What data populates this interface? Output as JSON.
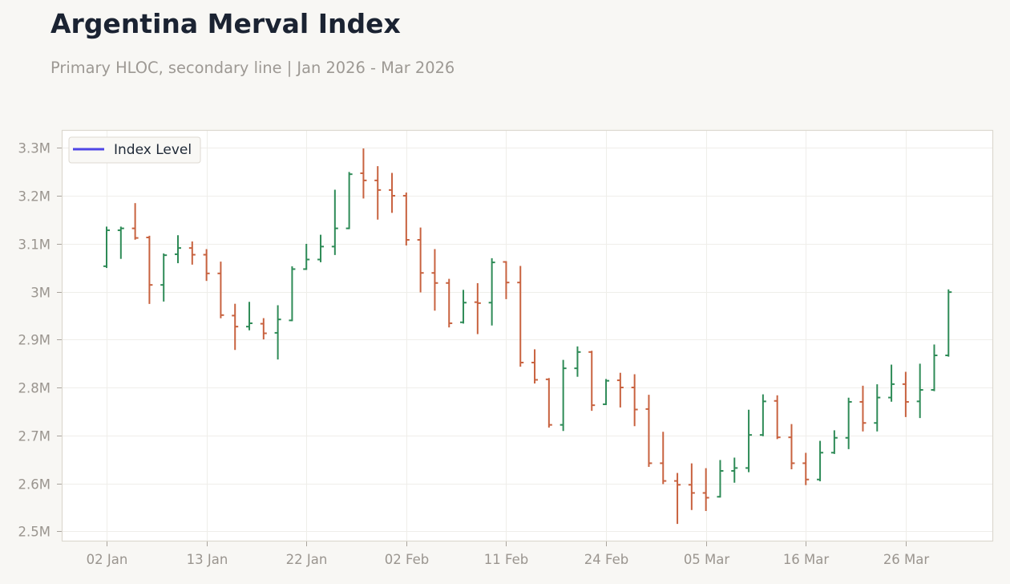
{
  "header": {
    "title": "Argentina Merval Index",
    "subtitle": "Primary HLOC, secondary line | Jan 2026 - Mar 2026"
  },
  "legend": {
    "position": "upper left",
    "items": [
      {
        "label": "Index Level",
        "color": "#4f46e5"
      }
    ]
  },
  "colors": {
    "up": "#2e8b57",
    "down": "#c8623f",
    "grid": "#efeeea",
    "frame": "#dcd8d0",
    "tick_label": "#9a958f",
    "background": "#f8f7f4",
    "plot_background": "#ffffff"
  },
  "chart_data": {
    "type": "bar",
    "style": "ohlc",
    "title": "Argentina Merval Index",
    "subtitle": "Primary HLOC, secondary line | Jan 2026 - Mar 2026",
    "xlabel": "",
    "ylabel": "",
    "grid": true,
    "legend_position": "upper left",
    "ylim": [
      2478700,
      3337300
    ],
    "xlim": [
      -3.146,
      62.13
    ],
    "xticks": {
      "positions": [
        0,
        7,
        14,
        21,
        28,
        35,
        42,
        49,
        56
      ],
      "labels": [
        "02 Jan",
        "13 Jan",
        "22 Jan",
        "02 Feb",
        "11 Feb",
        "24 Feb",
        "05 Mar",
        "16 Mar",
        "26 Mar"
      ]
    },
    "yticks": {
      "values": [
        3300000,
        3200000,
        3100000,
        3000000,
        2900000,
        2800000,
        2700000,
        2600000,
        2500000
      ],
      "labels": [
        "3.3M",
        "3.2M",
        "3.1M",
        "3M",
        "2.9M",
        "2.8M",
        "2.7M",
        "2.6M",
        "2.5M"
      ]
    },
    "x": [
      "02 Jan",
      "05 Jan",
      "06 Jan",
      "07 Jan",
      "08 Jan",
      "09 Jan",
      "12 Jan",
      "13 Jan",
      "14 Jan",
      "15 Jan",
      "16 Jan",
      "19 Jan",
      "20 Jan",
      "21 Jan",
      "22 Jan",
      "23 Jan",
      "26 Jan",
      "27 Jan",
      "28 Jan",
      "29 Jan",
      "30 Jan",
      "02 Feb",
      "03 Feb",
      "04 Feb",
      "05 Feb",
      "06 Feb",
      "09 Feb",
      "10 Feb",
      "11 Feb",
      "12 Feb",
      "13 Feb",
      "18 Feb",
      "19 Feb",
      "20 Feb",
      "23 Feb",
      "24 Feb",
      "25 Feb",
      "26 Feb",
      "27 Feb",
      "02 Mar",
      "03 Mar",
      "04 Mar",
      "05 Mar",
      "06 Mar",
      "09 Mar",
      "10 Mar",
      "11 Mar",
      "12 Mar",
      "13 Mar",
      "16 Mar",
      "17 Mar",
      "18 Mar",
      "19 Mar",
      "20 Mar",
      "23 Mar",
      "25 Mar",
      "26 Mar",
      "27 Mar",
      "30 Mar",
      "31 Mar"
    ],
    "series": [
      {
        "name": "Merval (HLOC)",
        "open": [
          3053000,
          3128000,
          3132000,
          3113000,
          3014000,
          3078000,
          3091000,
          3077000,
          3038000,
          2950000,
          2927000,
          2933000,
          2914000,
          2940000,
          3047000,
          3067000,
          3094000,
          3132000,
          3247000,
          3232000,
          3212000,
          3200000,
          3108000,
          3039000,
          3018000,
          2936000,
          2978000,
          2977000,
          3062000,
          3019000,
          2852000,
          2817000,
          2722000,
          2840000,
          2874000,
          2765000,
          2815000,
          2800000,
          2755000,
          2642000,
          2605000,
          2597000,
          2580000,
          2572000,
          2626000,
          2632000,
          2701000,
          2772000,
          2696000,
          2642000,
          2608000,
          2664000,
          2695000,
          2770000,
          2726000,
          2779000,
          2807000,
          2771000,
          2795000,
          2867000
        ],
        "high": [
          3134000,
          3134000,
          3183000,
          3115000,
          3078000,
          3116000,
          3103000,
          3087000,
          3061000,
          2973000,
          2977000,
          2943000,
          2970000,
          3051000,
          3098000,
          3117000,
          3211000,
          3248000,
          3297000,
          3260000,
          3246000,
          3205000,
          3132000,
          3087000,
          3025000,
          3002000,
          3016000,
          3068000,
          3062000,
          3052000,
          2878000,
          2818000,
          2856000,
          2884000,
          2875000,
          2816000,
          2829000,
          2826000,
          2783000,
          2706000,
          2620000,
          2640000,
          2630000,
          2647000,
          2652000,
          2752000,
          2784000,
          2782000,
          2722000,
          2662000,
          2687000,
          2709000,
          2777000,
          2802000,
          2805000,
          2846000,
          2831000,
          2848000,
          2888000,
          3003000
        ],
        "low": [
          3051000,
          3070000,
          3110000,
          2976000,
          2981000,
          3061000,
          3058000,
          3024000,
          2946000,
          2880000,
          2921000,
          2902000,
          2860000,
          2940000,
          3047000,
          3063000,
          3078000,
          3132000,
          3196000,
          3152000,
          3166000,
          3098000,
          3000000,
          2962000,
          2927000,
          2935000,
          2913000,
          2931000,
          2986000,
          2845000,
          2810000,
          2718000,
          2711000,
          2824000,
          2753000,
          2765000,
          2760000,
          2721000,
          2636000,
          2600000,
          2517000,
          2546000,
          2544000,
          2572000,
          2603000,
          2625000,
          2700000,
          2694000,
          2631000,
          2598000,
          2606000,
          2663000,
          2673000,
          2710000,
          2710000,
          2772000,
          2740000,
          2738000,
          2794000,
          2866000
        ],
        "close": [
          3128000,
          3132000,
          3112000,
          3014000,
          3076000,
          3091000,
          3077000,
          3038000,
          2951000,
          2927000,
          2934000,
          2913000,
          2942000,
          3047000,
          3067000,
          3094000,
          3132000,
          3245000,
          3232000,
          3212000,
          3200000,
          3108000,
          3039000,
          3018000,
          2934000,
          2977000,
          2976000,
          3061000,
          3019000,
          2852000,
          2816000,
          2722000,
          2840000,
          2874000,
          2763000,
          2814000,
          2800000,
          2754000,
          2642000,
          2605000,
          2597000,
          2580000,
          2570000,
          2626000,
          2632000,
          2701000,
          2771000,
          2696000,
          2642000,
          2608000,
          2664000,
          2695000,
          2770000,
          2726000,
          2779000,
          2807000,
          2770000,
          2795000,
          2867000,
          2999000
        ]
      },
      {
        "name": "Index Level",
        "axis": "secondary",
        "color": "#4f46e5",
        "values": []
      }
    ]
  }
}
